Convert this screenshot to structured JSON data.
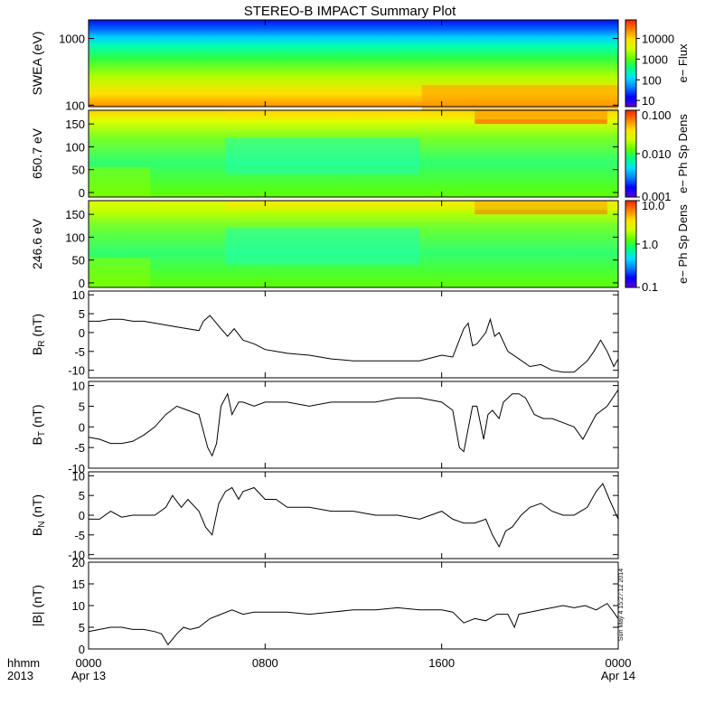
{
  "title": "STEREO-B IMPACT Summary Plot",
  "time_axis": {
    "label_top": "hhmm",
    "label_bottom": "2013",
    "ticks": [
      {
        "t": 0,
        "label": "0000",
        "sublabel": "Apr 13"
      },
      {
        "t": 8,
        "label": "0800",
        "sublabel": ""
      },
      {
        "t": 16,
        "label": "1600",
        "sublabel": ""
      },
      {
        "t": 24,
        "label": "0000",
        "sublabel": "Apr 14"
      }
    ]
  },
  "timestamp": "Sun May  4 15:27:12 2014",
  "colors": {
    "colormap": [
      "#5a00e0",
      "#0000ff",
      "#0080ff",
      "#00e0ff",
      "#00ff80",
      "#60ff00",
      "#d0ff00",
      "#ffe000",
      "#ff8000",
      "#ff2000"
    ],
    "frame": "#000000"
  },
  "chart_data": [
    {
      "type": "heatmap",
      "panel": "swea",
      "ylabel": "SWEA (eV)",
      "ylim": [
        95,
        1900
      ],
      "yscale": "log",
      "yticks": [
        {
          "v": 100,
          "label": "100"
        },
        {
          "v": 1000,
          "label": "1000"
        }
      ],
      "colorbar": {
        "title": "e− Flux",
        "scale": "log",
        "ticks": [
          "10",
          "100",
          "1000",
          "10000"
        ]
      }
    },
    {
      "type": "heatmap",
      "panel": "pad650",
      "ylabel": "650.7 eV",
      "ylim": [
        -10,
        180
      ],
      "yticks": [
        {
          "v": 0,
          "label": "0"
        },
        {
          "v": 50,
          "label": "50"
        },
        {
          "v": 100,
          "label": "100"
        },
        {
          "v": 150,
          "label": "150"
        }
      ],
      "colorbar": {
        "title": "e− Ph Sp Dens",
        "scale": "log",
        "ticks": [
          "0.001",
          "0.010",
          "0.100"
        ]
      }
    },
    {
      "type": "heatmap",
      "panel": "pad246",
      "ylabel": "246.6 eV",
      "ylim": [
        -10,
        180
      ],
      "yticks": [
        {
          "v": 0,
          "label": "0"
        },
        {
          "v": 50,
          "label": "50"
        },
        {
          "v": 100,
          "label": "100"
        },
        {
          "v": 150,
          "label": "150"
        }
      ],
      "colorbar": {
        "title": "e− Ph Sp Dens",
        "scale": "log",
        "ticks": [
          "0.1",
          "1.0",
          "10.0"
        ]
      }
    },
    {
      "type": "line",
      "panel": "br",
      "ylabel": "B_R (nT)",
      "ylabel_main": "B",
      "ylabel_sub": "R",
      "ylabel_unit": "(nT)",
      "ylim": [
        -12,
        11
      ],
      "yticks": [
        -10,
        -5,
        0,
        5,
        10
      ],
      "x": [
        0,
        0.5,
        1,
        1.5,
        2,
        2.5,
        3,
        3.5,
        4,
        4.5,
        5,
        5.2,
        5.5,
        6,
        6.3,
        6.6,
        7,
        7.5,
        8,
        8.5,
        9,
        10,
        11,
        12,
        13,
        14,
        15,
        16,
        16.5,
        17,
        17.2,
        17.4,
        17.6,
        18,
        18.2,
        18.4,
        18.6,
        19,
        19.5,
        20,
        20.5,
        21,
        21.5,
        22,
        22.3,
        22.6,
        22.9,
        23.2,
        23.5,
        23.8,
        24
      ],
      "values": [
        3,
        3,
        3.5,
        3.5,
        3,
        3,
        2.5,
        2,
        1.5,
        1,
        0.5,
        3,
        4.5,
        1,
        -1,
        1,
        -2,
        -3,
        -4.5,
        -5,
        -5.5,
        -6,
        -7,
        -7.5,
        -7.5,
        -7.5,
        -7.5,
        -6,
        -6.5,
        1,
        2.5,
        -3.5,
        -3,
        0,
        3.5,
        -1,
        0,
        -5,
        -7,
        -9,
        -8.5,
        -10,
        -10.5,
        -10.5,
        -9,
        -7.5,
        -5,
        -2,
        -5,
        -9,
        -7
      ]
    },
    {
      "type": "line",
      "panel": "bt",
      "ylabel": "B_T (nT)",
      "ylabel_main": "B",
      "ylabel_sub": "T",
      "ylabel_unit": "(nT)",
      "ylim": [
        -10,
        11
      ],
      "yticks": [
        -10,
        -5,
        0,
        5,
        10
      ],
      "x": [
        0,
        0.5,
        1,
        1.5,
        2,
        2.5,
        3,
        3.5,
        4,
        4.5,
        5,
        5.4,
        5.6,
        5.8,
        6,
        6.3,
        6.5,
        6.8,
        7,
        7.5,
        8,
        9,
        10,
        11,
        12,
        13,
        14,
        15,
        16,
        16.5,
        16.8,
        17,
        17.4,
        17.6,
        17.9,
        18.1,
        18.3,
        18.6,
        18.8,
        19.2,
        19.5,
        19.8,
        20.2,
        20.6,
        21,
        21.5,
        22,
        22.4,
        22.7,
        23,
        23.5,
        24
      ],
      "values": [
        -2.5,
        -3,
        -4,
        -4,
        -3.5,
        -2,
        0,
        3,
        5,
        4,
        3,
        -5,
        -7,
        -4,
        5,
        8,
        3,
        6,
        6,
        5,
        6,
        6,
        5,
        6,
        6,
        6,
        7,
        7,
        6,
        4,
        -5,
        -6,
        5,
        5,
        -3,
        3,
        4,
        2,
        6,
        8,
        8,
        7,
        3,
        2,
        2,
        1,
        0,
        -3,
        0,
        3,
        5,
        9
      ]
    },
    {
      "type": "line",
      "panel": "bn",
      "ylabel": "B_N (nT)",
      "ylabel_main": "B",
      "ylabel_sub": "N",
      "ylabel_unit": "(nT)",
      "ylim": [
        -11,
        11
      ],
      "yticks": [
        -10,
        -5,
        0,
        5,
        10
      ],
      "x": [
        0,
        0.5,
        1,
        1.5,
        2,
        2.5,
        3,
        3.5,
        3.8,
        4.2,
        4.5,
        5,
        5.3,
        5.6,
        5.9,
        6.2,
        6.5,
        6.8,
        7,
        7.5,
        8,
        8.5,
        9,
        10,
        11,
        12,
        13,
        14,
        15,
        16,
        16.5,
        17,
        17.5,
        18,
        18.3,
        18.6,
        18.9,
        19.2,
        19.6,
        20,
        20.5,
        21,
        21.5,
        22,
        22.3,
        22.6,
        23,
        23.3,
        23.6,
        24
      ],
      "values": [
        -1,
        -1,
        1,
        -0.5,
        0,
        0,
        0,
        2,
        5,
        2,
        4,
        1,
        -3,
        -5,
        3,
        6,
        7,
        4,
        6,
        7,
        4,
        4,
        2,
        2,
        1,
        1,
        0,
        0,
        -1,
        1,
        -1,
        -2,
        -2,
        -1,
        -5,
        -8,
        -4,
        -3,
        0,
        2,
        3,
        1,
        0,
        0,
        1,
        2,
        6,
        8,
        4,
        -1
      ]
    },
    {
      "type": "line",
      "panel": "bmag",
      "ylabel": "|B| (nT)",
      "ylim": [
        0,
        20
      ],
      "yticks": [
        0,
        5,
        10,
        15,
        20
      ],
      "x": [
        0,
        0.5,
        1,
        1.5,
        2,
        2.5,
        3,
        3.3,
        3.6,
        4,
        4.3,
        4.6,
        5,
        5.5,
        6,
        6.5,
        7,
        7.5,
        8,
        9,
        10,
        11,
        12,
        13,
        14,
        15,
        16,
        16.5,
        17,
        17.5,
        18,
        18.5,
        19,
        19.3,
        19.5,
        20,
        20.5,
        21,
        21.5,
        22,
        22.5,
        23,
        23.5,
        24
      ],
      "values": [
        4,
        4.5,
        5,
        5,
        4.5,
        4.5,
        4,
        3.5,
        1,
        3.5,
        5,
        4.5,
        5,
        7,
        8,
        9,
        8,
        8.5,
        8.5,
        8.5,
        8,
        8.5,
        9,
        9,
        9.5,
        9,
        9,
        8.5,
        6,
        7,
        6.5,
        8,
        8,
        5,
        8,
        8.5,
        9,
        9.5,
        10,
        9.5,
        10,
        9,
        10.5,
        7
      ]
    }
  ]
}
